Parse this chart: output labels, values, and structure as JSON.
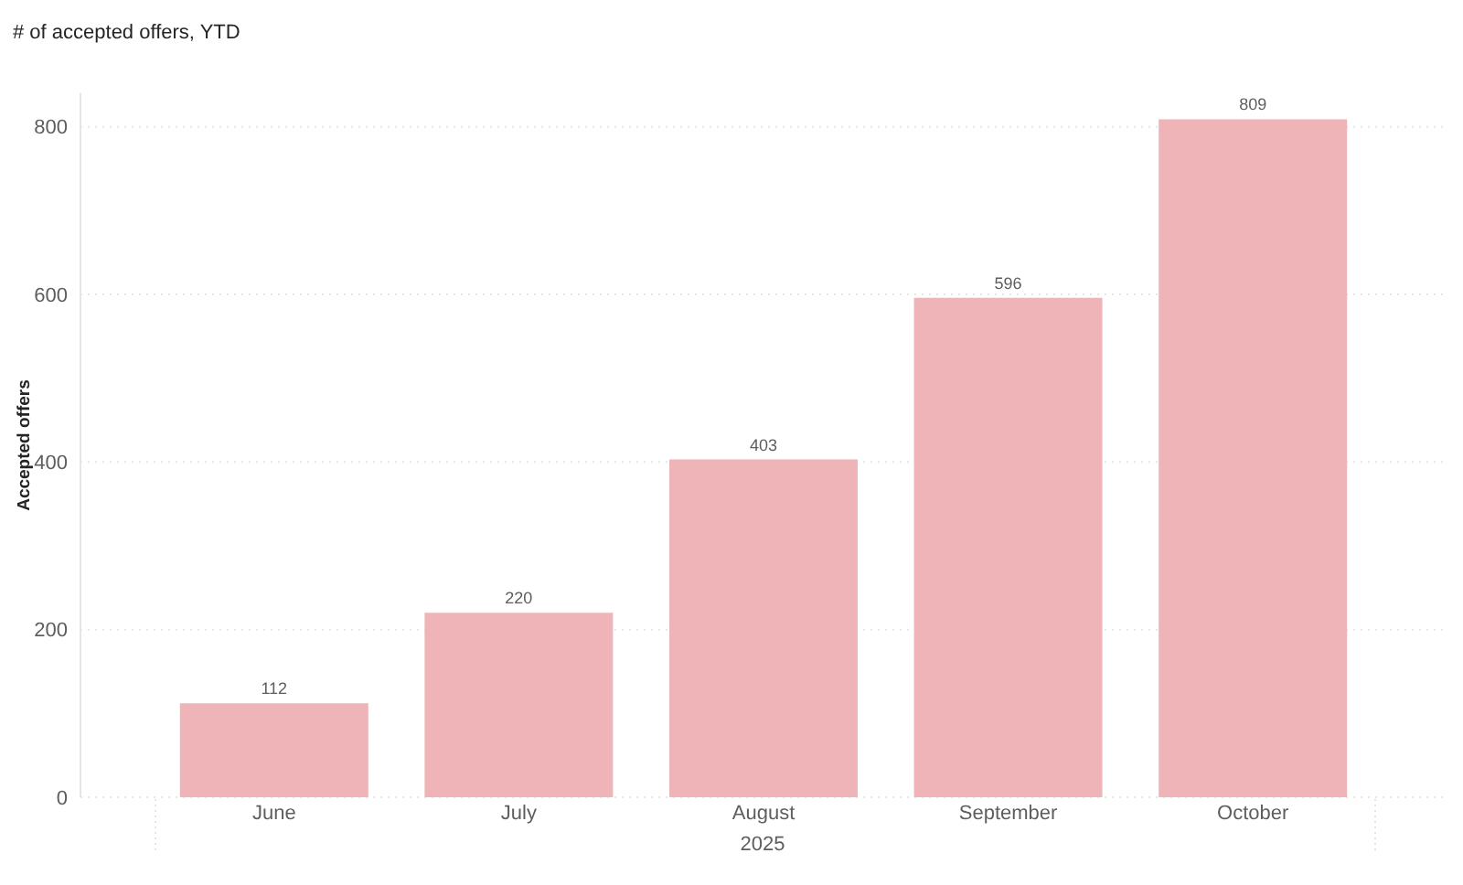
{
  "chart_data": {
    "type": "bar",
    "title": "# of accepted offers, YTD",
    "xlabel": "2025",
    "ylabel": "Accepted offers",
    "categories": [
      "June",
      "July",
      "August",
      "September",
      "October"
    ],
    "values": [
      112,
      220,
      403,
      596,
      809
    ],
    "color": "#efb4b8",
    "ylim": [
      0,
      840
    ],
    "yticks": [
      0,
      200,
      400,
      600,
      800
    ],
    "grid": "y",
    "data_labels": true
  }
}
